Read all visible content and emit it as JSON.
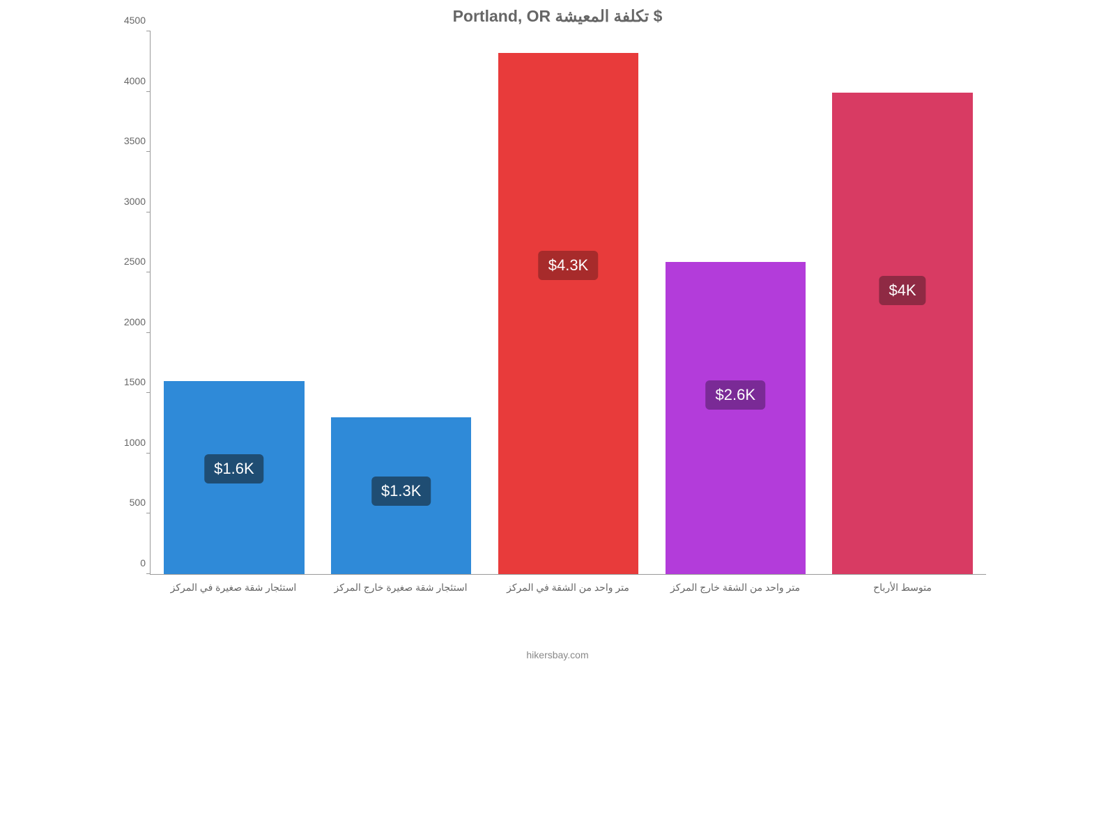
{
  "chart": {
    "type": "bar",
    "title": "Portland, OR تكلفة المعيشة $",
    "title_fontsize": 23,
    "title_color": "#666666",
    "background_color": "#ffffff",
    "axis_color": "#999999",
    "tick_label_color": "#666666",
    "tick_label_fontsize": 14,
    "xlabel_fontsize": 14,
    "bar_width": 0.84,
    "ylim": [
      0,
      4500
    ],
    "ytick_step": 500,
    "yticks": [
      {
        "value": 0,
        "label": "0"
      },
      {
        "value": 500,
        "label": "500"
      },
      {
        "value": 1000,
        "label": "1000"
      },
      {
        "value": 1500,
        "label": "1500"
      },
      {
        "value": 2000,
        "label": "2000"
      },
      {
        "value": 2500,
        "label": "2500"
      },
      {
        "value": 3000,
        "label": "3000"
      },
      {
        "value": 3500,
        "label": "3500"
      },
      {
        "value": 4000,
        "label": "4000"
      },
      {
        "value": 4500,
        "label": "4500"
      }
    ],
    "categories": [
      "استئجار شقة صغيرة في المركز",
      "استئجار شقة صغيرة خارج المركز",
      "متر واحد من الشقة في المركز",
      "متر واحد من الشقة خارج المركز",
      "متوسط الأرباح"
    ],
    "values": [
      1600,
      1300,
      4320,
      2590,
      3990
    ],
    "value_labels": [
      "$1.6K",
      "$1.3K",
      "$4.3K",
      "$2.6K",
      "$4K"
    ],
    "bar_colors": [
      "#2f8ad8",
      "#2f8ad8",
      "#e83b3b",
      "#b33cda",
      "#d83b63"
    ],
    "label_bg_colors": [
      "#1f4d73",
      "#1f4d73",
      "#a72b2b",
      "#7a2a96",
      "#8f2a44"
    ],
    "label_text_color": "#ffffff",
    "label_fontsize": 22,
    "label_radius": 6
  },
  "credit": "hikersbay.com",
  "credit_color": "#888888",
  "credit_fontsize": 14
}
